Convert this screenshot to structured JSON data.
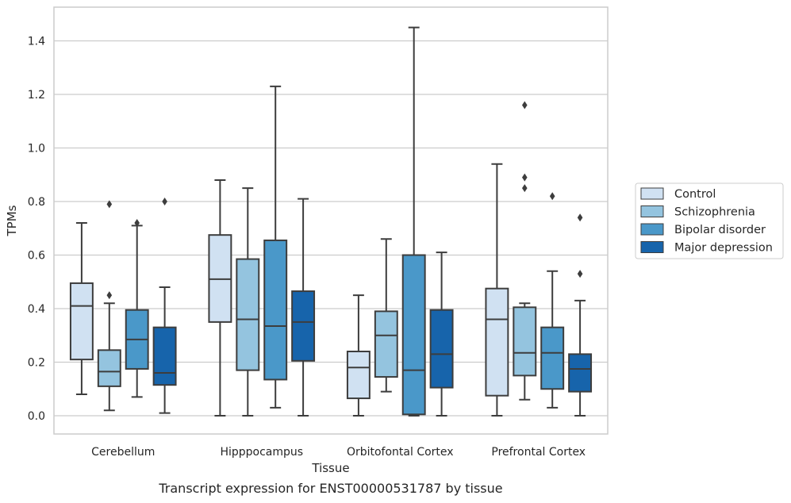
{
  "chart_data": {
    "type": "box",
    "xlabel": "Tissue",
    "ylabel": "TPMs",
    "caption": "Transcript expression for ENST00000531787 by tissue",
    "ylim": [
      -0.07,
      1.53
    ],
    "yticks": [
      0.0,
      0.2,
      0.4,
      0.6,
      0.8,
      1.0,
      1.2,
      1.4
    ],
    "ytick_labels": [
      "0.0",
      "0.2",
      "0.4",
      "0.6",
      "0.8",
      "1.0",
      "1.2",
      "1.4"
    ],
    "grid": "horizontal",
    "legend_position": "right",
    "categories": [
      "Cerebellum",
      "Hipppocampus",
      "Orbitofontal Cortex",
      "Prefrontal Cortex"
    ],
    "series": [
      {
        "name": "Control",
        "color": "#d0e1f2",
        "boxes": [
          {
            "whisker_low": 0.08,
            "q1": 0.21,
            "median": 0.41,
            "q3": 0.495,
            "whisker_high": 0.72,
            "outliers": []
          },
          {
            "whisker_low": 0.0,
            "q1": 0.35,
            "median": 0.51,
            "q3": 0.675,
            "whisker_high": 0.88,
            "outliers": []
          },
          {
            "whisker_low": 0.0,
            "q1": 0.065,
            "median": 0.18,
            "q3": 0.24,
            "whisker_high": 0.45,
            "outliers": []
          },
          {
            "whisker_low": 0.0,
            "q1": 0.075,
            "median": 0.36,
            "q3": 0.475,
            "whisker_high": 0.94,
            "outliers": []
          }
        ]
      },
      {
        "name": "Schizophrenia",
        "color": "#94c4df",
        "boxes": [
          {
            "whisker_low": 0.02,
            "q1": 0.11,
            "median": 0.165,
            "q3": 0.245,
            "whisker_high": 0.42,
            "outliers": [
              0.45,
              0.79
            ]
          },
          {
            "whisker_low": 0.0,
            "q1": 0.17,
            "median": 0.36,
            "q3": 0.585,
            "whisker_high": 0.85,
            "outliers": []
          },
          {
            "whisker_low": 0.09,
            "q1": 0.145,
            "median": 0.3,
            "q3": 0.39,
            "whisker_high": 0.66,
            "outliers": []
          },
          {
            "whisker_low": 0.06,
            "q1": 0.15,
            "median": 0.235,
            "q3": 0.405,
            "whisker_high": 0.42,
            "outliers": [
              0.85,
              0.89,
              1.16
            ]
          }
        ]
      },
      {
        "name": "Bipolar disorder",
        "color": "#4a98c9",
        "boxes": [
          {
            "whisker_low": 0.07,
            "q1": 0.175,
            "median": 0.285,
            "q3": 0.395,
            "whisker_high": 0.71,
            "outliers": [
              0.72
            ]
          },
          {
            "whisker_low": 0.03,
            "q1": 0.135,
            "median": 0.335,
            "q3": 0.655,
            "whisker_high": 1.23,
            "outliers": []
          },
          {
            "whisker_low": 0.0,
            "q1": 0.005,
            "median": 0.17,
            "q3": 0.6,
            "whisker_high": 1.45,
            "outliers": []
          },
          {
            "whisker_low": 0.03,
            "q1": 0.1,
            "median": 0.235,
            "q3": 0.33,
            "whisker_high": 0.54,
            "outliers": [
              0.82
            ]
          }
        ]
      },
      {
        "name": "Major depression",
        "color": "#1764ab",
        "boxes": [
          {
            "whisker_low": 0.01,
            "q1": 0.115,
            "median": 0.16,
            "q3": 0.33,
            "whisker_high": 0.48,
            "outliers": [
              0.8
            ]
          },
          {
            "whisker_low": 0.0,
            "q1": 0.205,
            "median": 0.35,
            "q3": 0.465,
            "whisker_high": 0.81,
            "outliers": []
          },
          {
            "whisker_low": 0.0,
            "q1": 0.105,
            "median": 0.23,
            "q3": 0.395,
            "whisker_high": 0.61,
            "outliers": []
          },
          {
            "whisker_low": 0.0,
            "q1": 0.09,
            "median": 0.175,
            "q3": 0.23,
            "whisker_high": 0.43,
            "outliers": [
              0.53,
              0.74
            ]
          }
        ]
      }
    ]
  }
}
